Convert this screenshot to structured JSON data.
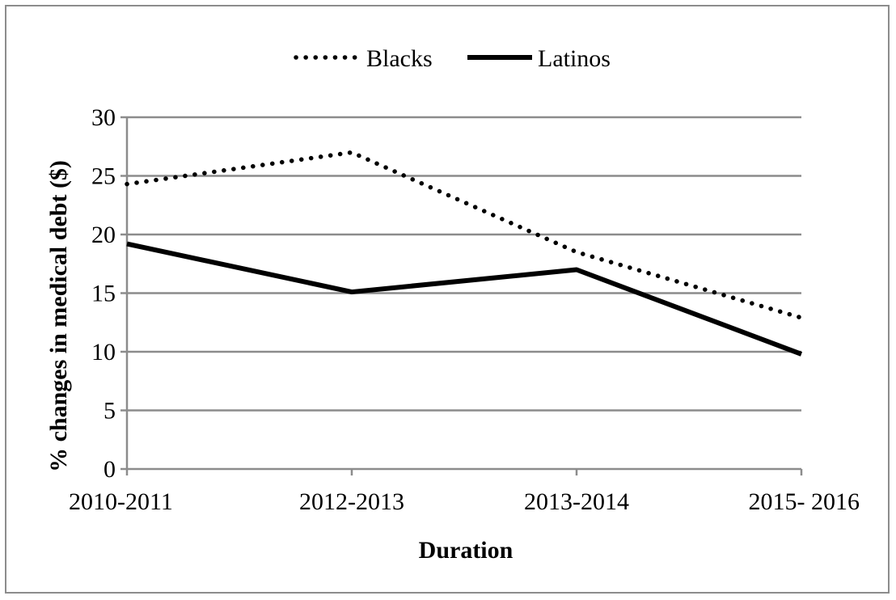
{
  "chart_data": {
    "type": "line",
    "categories": [
      "2010-2011",
      "2012-2013",
      "2013-2014",
      "2015- 2016"
    ],
    "series": [
      {
        "name": "Blacks",
        "values": [
          24.3,
          27.0,
          18.5,
          12.9
        ],
        "style": "dotted",
        "color": "#000000"
      },
      {
        "name": "Latinos",
        "values": [
          19.2,
          15.1,
          17.0,
          9.8
        ],
        "style": "solid",
        "color": "#000000"
      }
    ],
    "title": "",
    "xlabel": "Duration",
    "ylabel": "% changes in medical debt ($)",
    "ylim": [
      0,
      30
    ],
    "yticks": [
      0,
      5,
      10,
      15,
      20,
      25,
      30
    ],
    "grid": true,
    "legend": "top-center",
    "gridcolor": "#8c8c8c"
  }
}
